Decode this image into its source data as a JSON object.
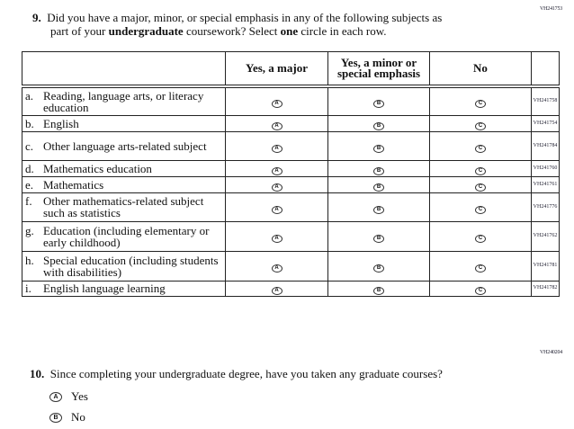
{
  "q9": {
    "code": "VH241753",
    "number": "9.",
    "text_1": "Did you have a major, minor, or special emphasis in any of the following subjects as",
    "text_2a": "part of your ",
    "text_2b": "undergraduate",
    "text_2c": " coursework? Select ",
    "text_2d": "one",
    "text_2e": " circle in each row.",
    "columns": [
      "Yes, a major",
      "Yes, a minor or special emphasis",
      "No"
    ],
    "bubbles": [
      "A",
      "B",
      "C"
    ],
    "rows": [
      {
        "letter": "a.",
        "label": "Reading, language arts, or literacy education",
        "code": "VH241758"
      },
      {
        "letter": "b.",
        "label": "English",
        "code": "VH241754"
      },
      {
        "letter": "c.",
        "label": "Other language arts-related subject",
        "code": "VH241784"
      },
      {
        "letter": "d.",
        "label": "Mathematics education",
        "code": "VH241760"
      },
      {
        "letter": "e.",
        "label": "Mathematics",
        "code": "VH241761"
      },
      {
        "letter": "f.",
        "label": "Other mathematics-related subject such as statistics",
        "code": "VH241776"
      },
      {
        "letter": "g.",
        "label": "Education (including elementary or early childhood)",
        "code": "VH241762"
      },
      {
        "letter": "h.",
        "label": "Special education (including students with disabilities)",
        "code": "VH241781"
      },
      {
        "letter": "i.",
        "label": "English language learning",
        "code": "VH241782"
      }
    ]
  },
  "q10": {
    "code": "VH240204",
    "number": "10.",
    "text": "Since completing your undergraduate degree, have you taken any graduate courses?",
    "options": [
      {
        "bubble": "A",
        "label": "Yes"
      },
      {
        "bubble": "B",
        "label": "No"
      }
    ]
  }
}
